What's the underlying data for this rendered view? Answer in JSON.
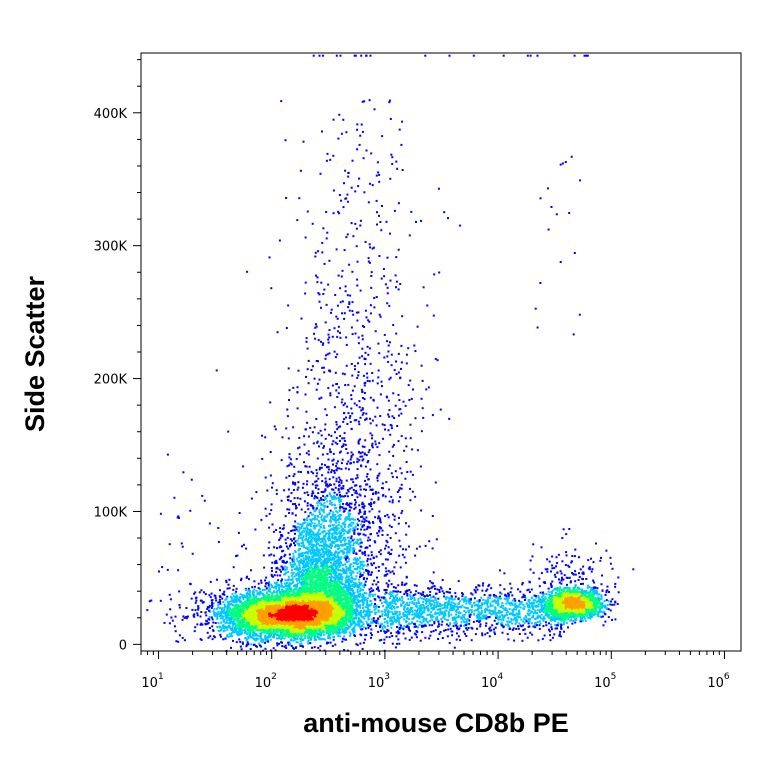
{
  "chart_data": {
    "type": "scatter",
    "plot_style": "density-dot-plot",
    "xlabel": "anti-mouse CD8b PE",
    "ylabel": "Side Scatter",
    "x_scale": "log",
    "xlim": [
      7,
      1400000
    ],
    "ylim": [
      -5000,
      445000
    ],
    "x_ticks": [
      {
        "value": 10,
        "base": "10",
        "exp": "1"
      },
      {
        "value": 100,
        "base": "10",
        "exp": "2"
      },
      {
        "value": 1000,
        "base": "10",
        "exp": "3"
      },
      {
        "value": 10000,
        "base": "10",
        "exp": "4"
      },
      {
        "value": 100000,
        "base": "10",
        "exp": "5"
      },
      {
        "value": 1000000,
        "base": "10",
        "exp": "6"
      }
    ],
    "y_ticks": [
      {
        "value": 0,
        "label": "0"
      },
      {
        "value": 100000,
        "label": "100K"
      },
      {
        "value": 200000,
        "label": "200K"
      },
      {
        "value": 300000,
        "label": "300K"
      },
      {
        "value": 400000,
        "label": "400K"
      }
    ],
    "color_scale": [
      "#0000ff",
      "#00c8ff",
      "#00ff80",
      "#c8ff00",
      "#ffa000",
      "#ff0000"
    ],
    "populations": [
      {
        "name": "CD8b-negative",
        "x_center": 150,
        "y_center": 22000,
        "peak_density": "high"
      },
      {
        "name": "CD8b-positive",
        "x_center": 45000,
        "y_center": 30000,
        "peak_density": "medium"
      }
    ],
    "grid": false
  }
}
